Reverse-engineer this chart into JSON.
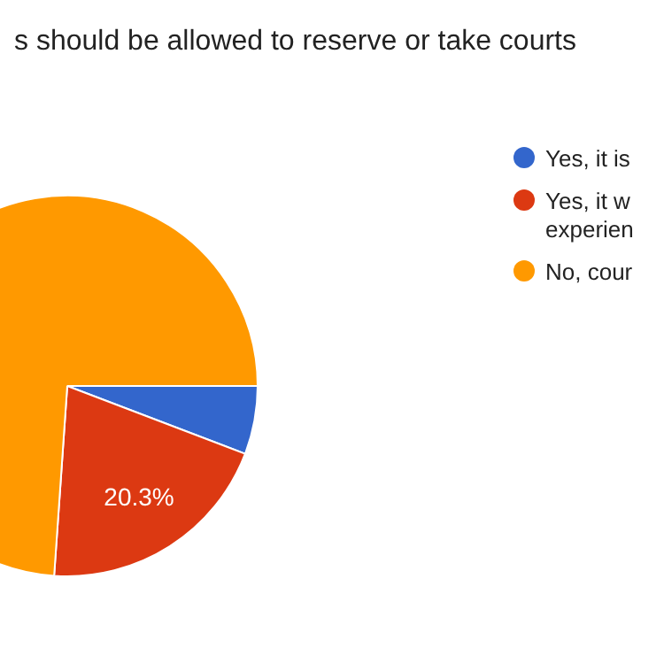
{
  "chart_data": {
    "type": "pie",
    "title": "s should be allowed to reserve or take courts",
    "categories": [
      "Yes, it is",
      "Yes, it w experien",
      "No, cour"
    ],
    "values": [
      5.8,
      20.3,
      73.9
    ],
    "colors": [
      "#3366cc",
      "#dc3912",
      "#ff9900"
    ],
    "value_labels": [
      null,
      "20.3%",
      null
    ],
    "legend": "right"
  }
}
